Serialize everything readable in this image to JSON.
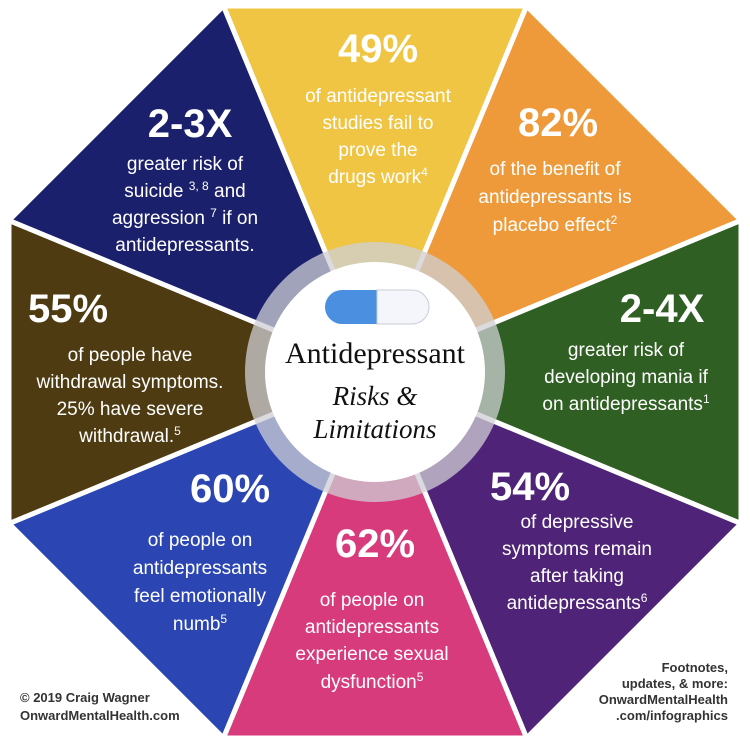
{
  "center": {
    "title": "Antidepressant",
    "subtitle_1": "Risks &",
    "subtitle_2": "Limitations"
  },
  "segments": [
    {
      "stat": "49%",
      "lines": [
        {
          "text": "of antidepressant"
        },
        {
          "text": "studies fail to"
        },
        {
          "text": "prove the"
        },
        {
          "text": "drugs work",
          "sup": "4"
        }
      ]
    },
    {
      "stat": "82%",
      "lines": [
        {
          "text": "of the benefit of"
        },
        {
          "text": "antidepressants  is"
        },
        {
          "text": "placebo effect",
          "sup": "2"
        }
      ]
    },
    {
      "stat": "2-4X",
      "lines": [
        {
          "text": "greater risk of"
        },
        {
          "text": "developing mania if"
        },
        {
          "text": "on antidepressants",
          "sup": "1"
        }
      ]
    },
    {
      "stat": "54%",
      "lines": [
        {
          "text": "of  depressive"
        },
        {
          "text": "symptoms remain"
        },
        {
          "text": "after taking"
        },
        {
          "text": "antidepressants",
          "sup": "6"
        }
      ]
    },
    {
      "stat": "62%",
      "lines": [
        {
          "text": "of people on"
        },
        {
          "text": "antidepressants"
        },
        {
          "text": "experience sexual"
        },
        {
          "text": "dysfunction",
          "sup": "5"
        }
      ]
    },
    {
      "stat": "60%",
      "lines": [
        {
          "text": "of people on"
        },
        {
          "text": "antidepressants"
        },
        {
          "text": "feel emotionally"
        },
        {
          "text": "numb",
          "sup": "5"
        }
      ]
    },
    {
      "stat": "55%",
      "lines": [
        {
          "text": "of people have"
        },
        {
          "text": "withdrawal symptoms."
        },
        {
          "text": "25% have severe"
        },
        {
          "text": "withdrawal.",
          "sup": "5"
        }
      ]
    },
    {
      "stat": "2-3X",
      "lines": [
        {
          "text": "greater risk of"
        },
        {
          "text": "suicide ",
          "sup": "3, 8",
          "after": " and"
        },
        {
          "text": "aggression ",
          "sup": "7",
          "after": " if on"
        },
        {
          "text": "antidepressants."
        }
      ]
    }
  ],
  "footer_left": [
    "© 2019 Craig Wagner",
    "OnwardMentalHealth.com"
  ],
  "footer_right": [
    "Footnotes,",
    "updates, & more:",
    "OnwardMentalHealth",
    ".com/infographics"
  ]
}
